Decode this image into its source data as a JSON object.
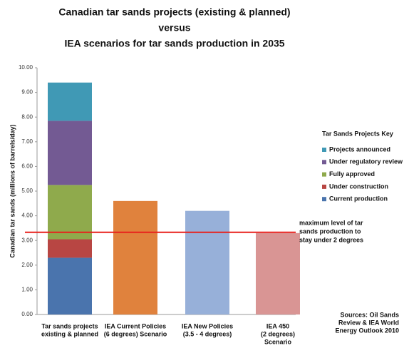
{
  "chart_data": {
    "type": "stacked-bar",
    "title": [
      "Canadian tar sands projects (existing & planned)",
      "versus",
      "IEA scenarios for tar sands production in 2035"
    ],
    "y_label": "Canadian tar sands (millions of barrels/day)",
    "categories": [
      [
        "Tar sands projects",
        "existing & planned"
      ],
      [
        "IEA Current Policies",
        "(6 degrees) Scenario"
      ],
      [
        "IEA New Policies",
        "(3.5 - 4 degrees)"
      ],
      [
        "IEA 450",
        "(2 degrees)",
        "Scenario"
      ]
    ],
    "series": [
      {
        "name": "Current production",
        "color": "#4a74ad",
        "values": [
          2.3,
          null,
          null,
          null
        ]
      },
      {
        "name": "Under construction",
        "color": "#b84643",
        "values": [
          0.75,
          null,
          null,
          null
        ]
      },
      {
        "name": "Fully approved",
        "color": "#8faa4c",
        "values": [
          2.2,
          null,
          null,
          null
        ]
      },
      {
        "name": "Under regulatory review",
        "color": "#735a93",
        "values": [
          2.6,
          null,
          null,
          null
        ]
      },
      {
        "name": "Projects announced",
        "color": "#4099b5",
        "values": [
          1.55,
          null,
          null,
          null
        ]
      }
    ],
    "scenarios": {
      "values": [
        null,
        4.6,
        4.2,
        3.3
      ],
      "colors": [
        null,
        "#e0823d",
        "#97b0d9",
        "#d99594"
      ]
    },
    "legend_title": "Tar Sands Projects Key",
    "ylim": [
      0,
      10
    ],
    "yticks": [
      {
        "value": 0,
        "label": "0.00"
      },
      {
        "value": 1,
        "label": "1.00"
      },
      {
        "value": 2,
        "label": "2.00"
      },
      {
        "value": 3,
        "label": "3.00"
      },
      {
        "value": 4,
        "label": "4.00"
      },
      {
        "value": 5,
        "label": "5.00"
      },
      {
        "value": 6,
        "label": "6.00"
      },
      {
        "value": 7,
        "label": "7.00"
      },
      {
        "value": 8,
        "label": "8.00"
      },
      {
        "value": 9,
        "label": "9.00"
      },
      {
        "value": 10,
        "label": "10.00"
      }
    ],
    "grid": false,
    "reference_line": {
      "value": 3.33,
      "color": "#e8201c",
      "label": [
        "maximum level of tar",
        "sands production to",
        "stay under 2 degrees"
      ]
    },
    "source": [
      "Sources: Oil Sands",
      "Review & IEA World",
      "Energy Outlook 2010"
    ]
  }
}
